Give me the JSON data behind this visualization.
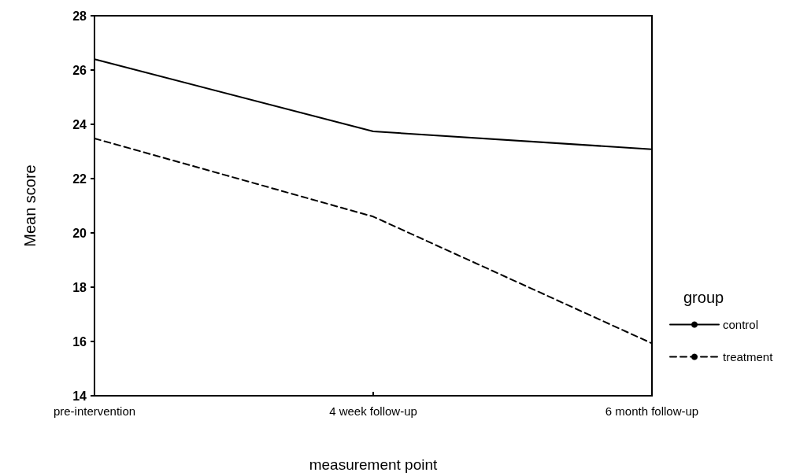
{
  "chart_data": {
    "type": "line",
    "xlabel": "measurement point",
    "ylabel": "Mean score",
    "legend_title": "group",
    "categories": [
      "pre-intervention",
      "4 week follow-up",
      "6 month follow-up"
    ],
    "series": [
      {
        "name": "control",
        "color": "#000000",
        "values": [
          26.4,
          23.74,
          23.08
        ],
        "line_style": "solid"
      },
      {
        "name": "treatment",
        "color": "#000000",
        "values": [
          23.48,
          20.6,
          15.93
        ],
        "line_style": "dashed"
      }
    ],
    "ylim": [
      14,
      28
    ],
    "yticks": [
      14,
      16,
      18,
      20,
      22,
      24,
      26,
      28
    ],
    "grid": false,
    "legend": "right",
    "marker": "none"
  }
}
